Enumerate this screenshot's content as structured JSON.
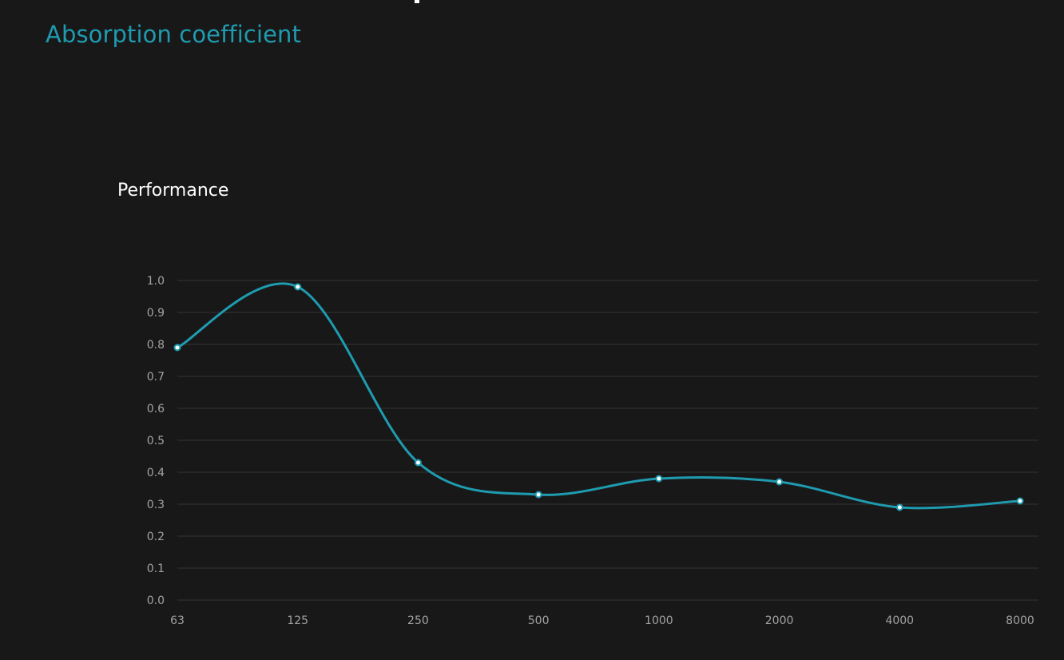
{
  "page": {
    "heading": "Absorption coefficient"
  },
  "chart_data": {
    "type": "line",
    "title": "Performance",
    "xlabel": "",
    "ylabel": "",
    "categories": [
      "63",
      "125",
      "250",
      "500",
      "1000",
      "2000",
      "4000",
      "8000"
    ],
    "series": [
      {
        "values": [
          0.79,
          0.98,
          0.43,
          0.33,
          0.38,
          0.37,
          0.29,
          0.31
        ]
      }
    ],
    "ylim": [
      0.0,
      1.0
    ],
    "yticks": [
      "0.0",
      "0.1",
      "0.2",
      "0.3",
      "0.4",
      "0.5",
      "0.6",
      "0.7",
      "0.8",
      "0.9",
      "1.0"
    ],
    "grid": true,
    "legend": "none",
    "colors": {
      "line": "#1f9bb0",
      "point_fill": "#ffffff",
      "grid": "#333333",
      "tick_text": "#a3a3a3",
      "background": "#181818"
    }
  }
}
